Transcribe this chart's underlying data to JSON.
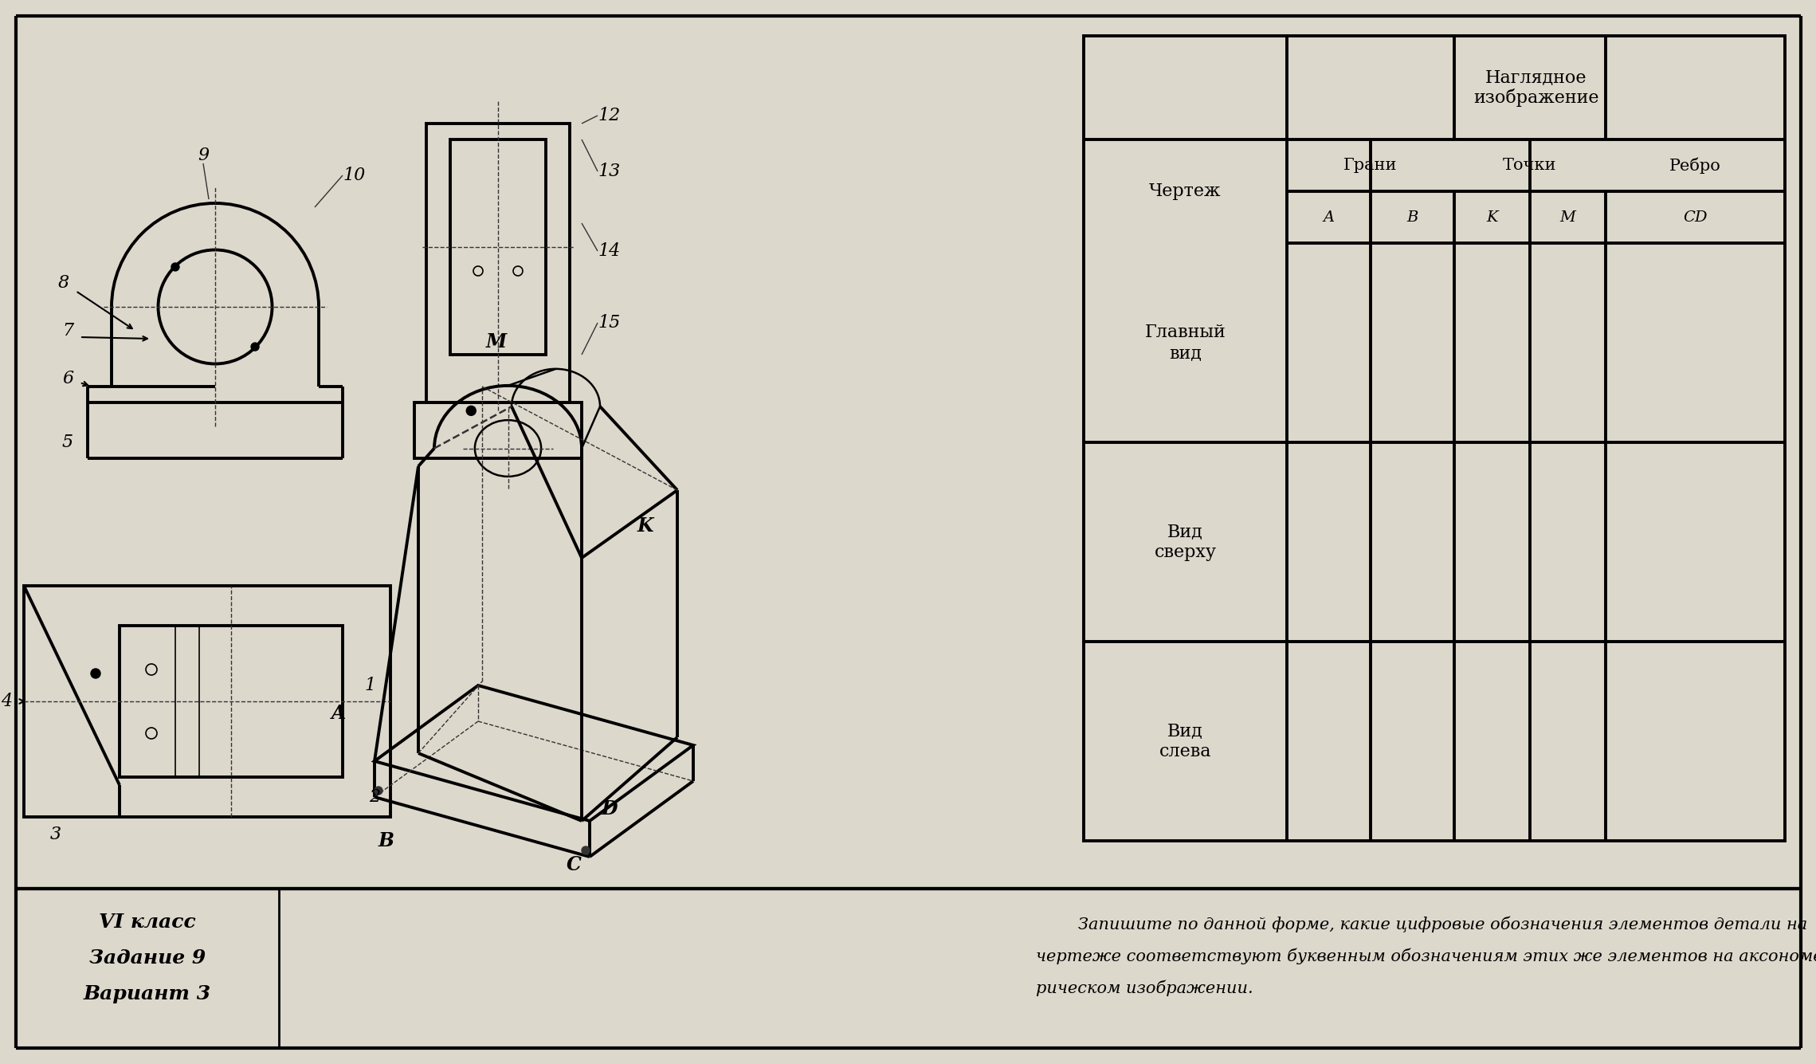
{
  "bg_color": "#ddd8cc",
  "line_color": "#000000",
  "dash_color": "#333333",
  "text_color": "#000000",
  "table_col_chertezh": "Чертеж",
  "table_col_grani": "Грани",
  "table_col_tochki": "Точки",
  "table_col_rebro": "Ребро",
  "table_header": "Наглядное\nизображение",
  "table_subA": "A",
  "table_subB": "B",
  "table_subK": "K",
  "table_subM": "M",
  "table_subCD": "CD",
  "table_row1": "Главный\nвид",
  "table_row2": "Вид\nсверху",
  "table_row3": "Вид\nслева",
  "bottom_left1": "VI класс",
  "bottom_left2": "Задание 9",
  "bottom_left3": "Вариант 3",
  "bottom_text_line1": "        Запишите по данной форме, какие цифровые обозначения элементов детали на",
  "bottom_text_line2": "чертеже соответствуют буквенным обозначениям этих же элементов на аксономет-",
  "bottom_text_line3": "рическом изображении."
}
